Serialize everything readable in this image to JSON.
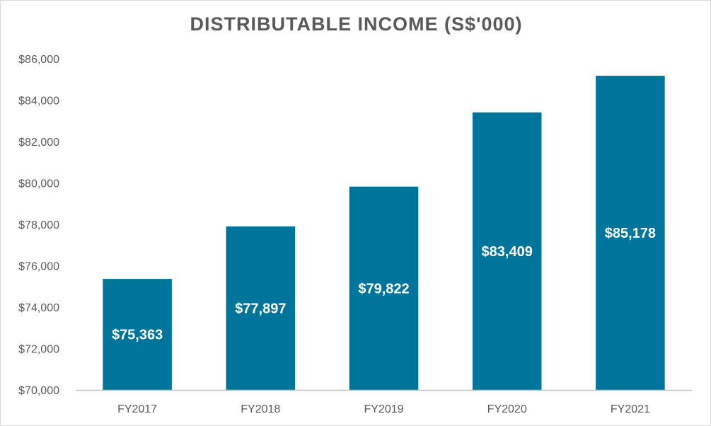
{
  "chart_data": {
    "type": "bar",
    "title": "DISTRIBUTABLE INCOME (S$'000)",
    "xlabel": "",
    "ylabel": "",
    "categories": [
      "FY2017",
      "FY2018",
      "FY2019",
      "FY2020",
      "FY2021"
    ],
    "values": [
      75363,
      77897,
      79822,
      83409,
      85178
    ],
    "data_labels": [
      "$75,363",
      "$77,897",
      "$79,822",
      "$83,409",
      "$85,178"
    ],
    "ylim": [
      70000,
      86000
    ],
    "yticks": [
      70000,
      72000,
      74000,
      76000,
      78000,
      80000,
      82000,
      84000,
      86000
    ],
    "ytick_labels": [
      "$70,000",
      "$72,000",
      "$74,000",
      "$76,000",
      "$78,000",
      "$80,000",
      "$82,000",
      "$84,000",
      "$86,000"
    ],
    "grid": false,
    "legend": "none",
    "bar_color": "#00759c",
    "axis_color": "#bfbfbf"
  }
}
